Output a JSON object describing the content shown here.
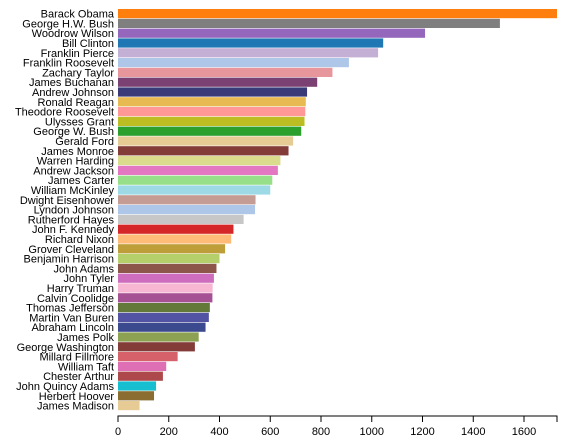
{
  "chart_data": {
    "type": "bar",
    "orientation": "horizontal",
    "categories": [
      "Barack Obama",
      "George H.W. Bush",
      "Woodrow Wilson",
      "Bill Clinton",
      "Franklin Pierce",
      "Franklin Roosevelt",
      "Zachary Taylor",
      "James Buchanan",
      "Andrew Johnson",
      "Ronald Reagan",
      "Theodore Roosevelt",
      "Ulysses Grant",
      "George W. Bush",
      "Gerald Ford",
      "James Monroe",
      "Warren Harding",
      "Andrew Jackson",
      "James Carter",
      "William McKinley",
      "Dwight Eisenhower",
      "Lyndon Johnson",
      "Rutherford Hayes",
      "John F. Kennedy",
      "Richard Nixon",
      "Grover Cleveland",
      "Benjamin Harrison",
      "John Adams",
      "John Tyler",
      "Harry Truman",
      "Calvin Coolidge",
      "Thomas Jefferson",
      "Martin Van Buren",
      "Abraham Lincoln",
      "James Polk",
      "George Washington",
      "Millard Fillmore",
      "William Taft",
      "Chester Arthur",
      "John Quincy Adams",
      "Herbert Hoover",
      "James Madison"
    ],
    "values": [
      1730,
      1505,
      1210,
      1045,
      1025,
      910,
      845,
      785,
      745,
      740,
      738,
      735,
      722,
      690,
      672,
      640,
      630,
      608,
      600,
      542,
      540,
      495,
      455,
      446,
      422,
      400,
      388,
      378,
      373,
      372,
      362,
      358,
      345,
      318,
      303,
      235,
      190,
      177,
      150,
      142,
      85
    ],
    "colors": [
      "#ff7f0e",
      "#7f7f7f",
      "#9467bd",
      "#1f77b4",
      "#c5b0d5",
      "#aec7e8",
      "#e7969c",
      "#7b4173",
      "#393b79",
      "#e7ba52",
      "#ff9896",
      "#bcbd22",
      "#2ca02c",
      "#e7cb94",
      "#843c39",
      "#dbdb8d",
      "#e377c2",
      "#98df8a",
      "#9edae5",
      "#c49c94",
      "#aec7e8",
      "#c7c7c7",
      "#d62728",
      "#ffbb78",
      "#bd9e39",
      "#b5cf6b",
      "#8c564b",
      "#ce6dbd",
      "#f7b6d2",
      "#a55194",
      "#637939",
      "#5254a3",
      "#3b4a8f",
      "#8ca252",
      "#843c39",
      "#d6616b",
      "#de6fb4",
      "#ad494a",
      "#17becf",
      "#8c6d31",
      "#e7cb94"
    ],
    "xlim": [
      0,
      1730
    ],
    "xticks": [
      0,
      200,
      400,
      600,
      800,
      1000,
      1200,
      1400,
      1600
    ],
    "title": "",
    "xlabel": "",
    "ylabel": "",
    "grid": false,
    "legend": "none"
  }
}
